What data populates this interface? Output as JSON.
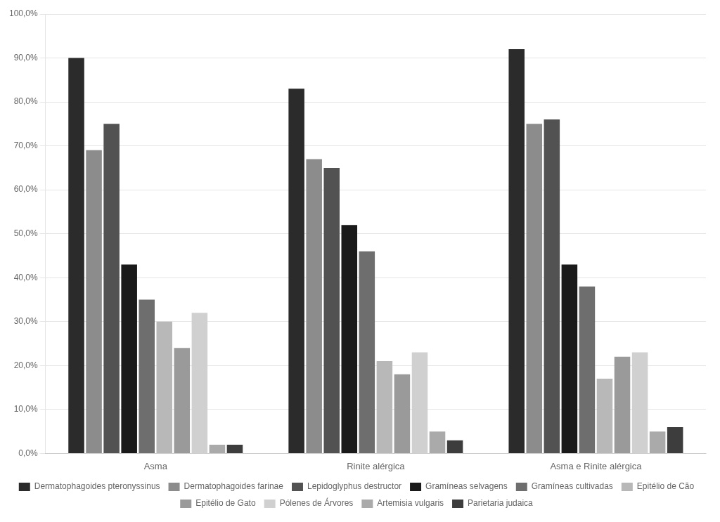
{
  "chart_data": {
    "type": "bar",
    "categories": [
      "Asma",
      "Rinite alérgica",
      "Asma e Rinite alérgica"
    ],
    "series": [
      {
        "name": "Dermatophagoides pteronyssinus",
        "color": "#2b2b2b",
        "values": [
          90.0,
          83.0,
          92.0
        ]
      },
      {
        "name": "Dermatophagoides farinae",
        "color": "#8c8c8c",
        "values": [
          69.0,
          67.0,
          75.0
        ]
      },
      {
        "name": "Lepidoglyphus destructor",
        "color": "#525252",
        "values": [
          75.0,
          65.0,
          76.0
        ]
      },
      {
        "name": "Gramíneas selvagens",
        "color": "#1a1a1a",
        "values": [
          43.0,
          52.0,
          43.0
        ]
      },
      {
        "name": "Gramíneas cultivadas",
        "color": "#6e6e6e",
        "values": [
          35.0,
          46.0,
          38.0
        ]
      },
      {
        "name": "Epitélio de Cão",
        "color": "#b8b8b8",
        "values": [
          30.0,
          21.0,
          17.0
        ]
      },
      {
        "name": "Epitélio de Gato",
        "color": "#9a9a9a",
        "values": [
          24.0,
          18.0,
          22.0
        ]
      },
      {
        "name": "Pólenes de Árvores",
        "color": "#d0d0d0",
        "values": [
          32.0,
          23.0,
          23.0
        ]
      },
      {
        "name": "Artemisia vulgaris",
        "color": "#aaaaaa",
        "values": [
          2.0,
          5.0,
          5.0
        ]
      },
      {
        "name": "Parietaria judaica",
        "color": "#3d3d3d",
        "values": [
          2.0,
          3.0,
          6.0
        ]
      }
    ],
    "ylim": [
      0,
      100
    ],
    "yticks": [
      {
        "value": 0,
        "label": "0,0%"
      },
      {
        "value": 10,
        "label": "10,0%"
      },
      {
        "value": 20,
        "label": "20,0%"
      },
      {
        "value": 30,
        "label": "30,0%"
      },
      {
        "value": 40,
        "label": "40,0%"
      },
      {
        "value": 50,
        "label": "50,0%"
      },
      {
        "value": 60,
        "label": "60,0%"
      },
      {
        "value": 70,
        "label": "70,0%"
      },
      {
        "value": 80,
        "label": "80,0%"
      },
      {
        "value": 90,
        "label": "90,0%"
      },
      {
        "value": 100,
        "label": "100,0%"
      }
    ],
    "grid": true,
    "legend": "bottom"
  }
}
